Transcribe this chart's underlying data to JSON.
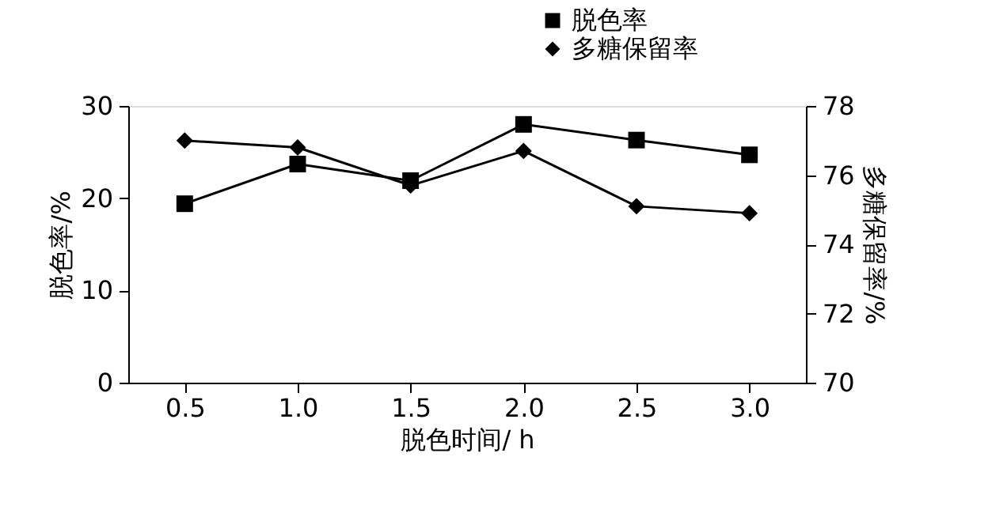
{
  "chart_data": {
    "type": "line",
    "xlabel": "脱色时间/ h",
    "ylabel": "脱色率/%",
    "y2label": "多糖保留率/%",
    "x": [
      0.5,
      1.0,
      1.5,
      2.0,
      2.5,
      3.0
    ],
    "xlim": [
      0.25,
      3.25
    ],
    "xticks": [
      0.5,
      {
        "value": 1,
        "label": "1.0"
      },
      1.5,
      {
        "value": 2,
        "label": "2.0"
      },
      2.5,
      {
        "value": 3,
        "label": "3.0"
      }
    ],
    "ylim": [
      0,
      30
    ],
    "yticks": [
      0,
      10,
      20,
      30
    ],
    "y2lim": [
      70,
      78
    ],
    "y2ticks": [
      70,
      72,
      74,
      76,
      78
    ],
    "grid": false,
    "legend": "top right",
    "line_style": "solid",
    "series": [
      {
        "name": "脱色率",
        "color": "#000000",
        "marker": "square",
        "values": [
          19.4,
          23.7,
          21.9,
          28.0,
          26.3,
          24.7
        ]
      },
      {
        "name": "多糖保留率",
        "color": "#000000",
        "marker": "diamond",
        "axis": "y2",
        "values": [
          77.0,
          76.8,
          75.7,
          76.7,
          75.1,
          74.9
        ]
      }
    ]
  }
}
